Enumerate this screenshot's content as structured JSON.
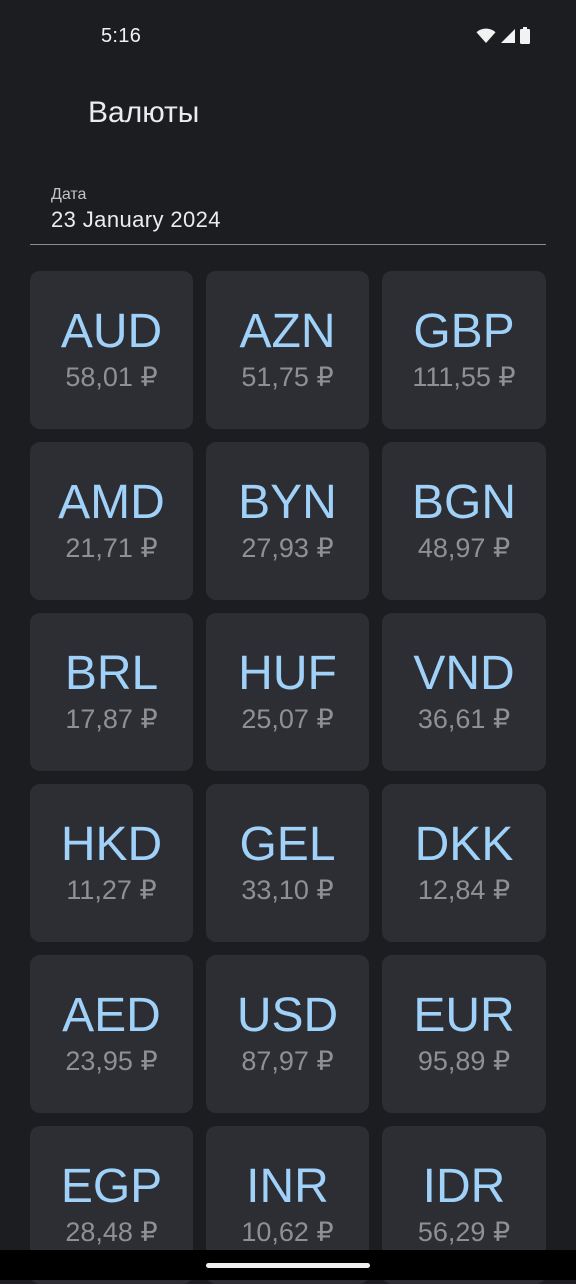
{
  "status_bar": {
    "time": "5:16",
    "icons": [
      "wifi-icon",
      "signal-icon",
      "battery-icon"
    ]
  },
  "app": {
    "title": "Валюты"
  },
  "date_field": {
    "label": "Дата",
    "value": "23 January 2024"
  },
  "colors": {
    "background": "#1c1d20",
    "card": "#2d2e33",
    "code": "#9fd1f9",
    "rate": "#8f9096"
  },
  "currencies": [
    {
      "code": "AUD",
      "rate": "58,01 ₽"
    },
    {
      "code": "AZN",
      "rate": "51,75 ₽"
    },
    {
      "code": "GBP",
      "rate": "111,55 ₽"
    },
    {
      "code": "AMD",
      "rate": "21,71 ₽"
    },
    {
      "code": "BYN",
      "rate": "27,93 ₽"
    },
    {
      "code": "BGN",
      "rate": "48,97 ₽"
    },
    {
      "code": "BRL",
      "rate": "17,87 ₽"
    },
    {
      "code": "HUF",
      "rate": "25,07 ₽"
    },
    {
      "code": "VND",
      "rate": "36,61 ₽"
    },
    {
      "code": "HKD",
      "rate": "11,27 ₽"
    },
    {
      "code": "GEL",
      "rate": "33,10 ₽"
    },
    {
      "code": "DKK",
      "rate": "12,84 ₽"
    },
    {
      "code": "AED",
      "rate": "23,95 ₽"
    },
    {
      "code": "USD",
      "rate": "87,97 ₽"
    },
    {
      "code": "EUR",
      "rate": "95,89 ₽"
    },
    {
      "code": "EGP",
      "rate": "28,48 ₽"
    },
    {
      "code": "INR",
      "rate": "10,62 ₽"
    },
    {
      "code": "IDR",
      "rate": "56,29 ₽"
    }
  ]
}
